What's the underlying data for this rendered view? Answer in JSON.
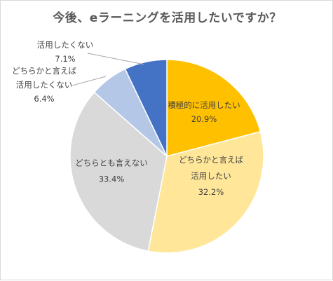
{
  "chart_data": {
    "type": "pie",
    "title": "今後、eラーニングを活用したいですか？",
    "slices": [
      {
        "label_lines": [
          "積極的に活用したい"
        ],
        "value_text": "20.9%",
        "value": 20.9,
        "color": "#ffc000"
      },
      {
        "label_lines": [
          "どちらかと言えば",
          "活用したい"
        ],
        "value_text": "32.2%",
        "value": 32.2,
        "color": "#ffe699"
      },
      {
        "label_lines": [
          "どちらとも言えない"
        ],
        "value_text": "33.4%",
        "value": 33.4,
        "color": "#d9d9d9"
      },
      {
        "label_lines": [
          "どちらかと言えば",
          "活用したくない"
        ],
        "value_text": "6.4%",
        "value": 6.4,
        "color": "#b4c7e7"
      },
      {
        "label_lines": [
          "活用したくない"
        ],
        "value_text": "7.1%",
        "value": 7.1,
        "color": "#4472c4"
      }
    ],
    "start_angle": "top",
    "direction": "clockwise",
    "slice_border_color": "#ffffff"
  }
}
